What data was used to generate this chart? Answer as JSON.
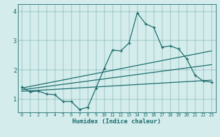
{
  "xlabel": "Humidex (Indice chaleur)",
  "bg_color": "#d4edec",
  "line_color": "#1a6b6b",
  "xlim": [
    -0.5,
    23.5
  ],
  "ylim": [
    0.55,
    4.25
  ],
  "xticks": [
    0,
    1,
    2,
    3,
    4,
    5,
    6,
    7,
    8,
    9,
    10,
    11,
    12,
    13,
    14,
    15,
    16,
    17,
    18,
    19,
    20,
    21,
    22,
    23
  ],
  "yticks": [
    1,
    2,
    3,
    4
  ],
  "main_line_x": [
    0,
    1,
    2,
    3,
    4,
    5,
    6,
    7,
    8,
    9,
    10,
    11,
    12,
    13,
    14,
    15,
    16,
    17,
    18,
    19,
    20,
    21,
    22,
    23
  ],
  "main_line_y": [
    1.42,
    1.25,
    1.28,
    1.18,
    1.15,
    0.92,
    0.92,
    0.65,
    0.72,
    1.38,
    2.05,
    2.68,
    2.65,
    2.92,
    3.95,
    3.58,
    3.45,
    2.78,
    2.82,
    2.72,
    2.38,
    1.82,
    1.62,
    1.58
  ],
  "line2_x": [
    0,
    23
  ],
  "line2_y": [
    1.38,
    2.65
  ],
  "line3_x": [
    0,
    23
  ],
  "line3_y": [
    1.32,
    2.18
  ],
  "line4_x": [
    0,
    23
  ],
  "line4_y": [
    1.27,
    1.65
  ]
}
